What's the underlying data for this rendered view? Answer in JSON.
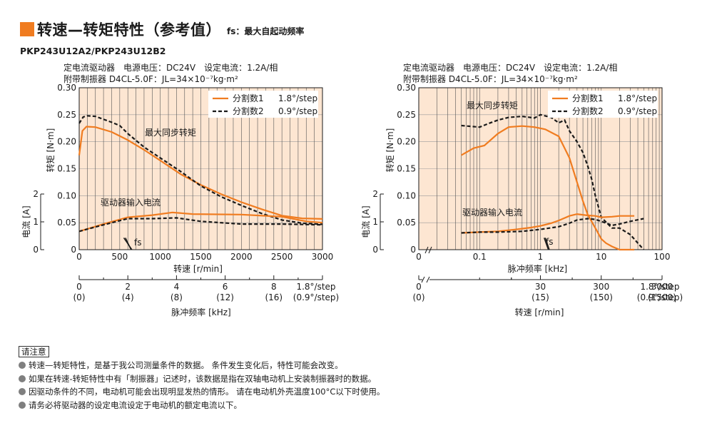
{
  "header": {
    "title": "转速—转矩特性（参考值）",
    "subtitle": "fs：最大自起动频率",
    "model": "PKP243U12A2/PKP243U12B2"
  },
  "legend": [
    {
      "label": "分割数1",
      "step": "1.8°/step",
      "color": "#f07c20",
      "dash": "solid"
    },
    {
      "label": "分割数2",
      "step": "0.9°/step",
      "color": "#1a1a1a",
      "dash": "dashed"
    }
  ],
  "chart_data": [
    {
      "type": "line",
      "conditions": [
        "定电流驱动器　电源电压：DC24V　设定电流：1.2A/相",
        "附带制振器 D4CL-5.0F：JL=34×10⁻⁷kg·m²"
      ],
      "ylabel": "转矩 [N·m]",
      "ylabel2": "电流 [A]",
      "xlabel": "转速 [r/min]",
      "xlabel2": "脉冲频率 [kHz]",
      "xlim": [
        0,
        3000
      ],
      "ylim": [
        0,
        0.3
      ],
      "yticks": [
        "0",
        "0.05",
        "0.10",
        "0.15",
        "0.20",
        "0.25",
        "0.30"
      ],
      "xticks": [
        "0",
        "500",
        "1000",
        "1500",
        "2000",
        "2500",
        "3000"
      ],
      "y2ticks": [
        "0",
        "1",
        "2"
      ],
      "freq_axis": {
        "ticks": [
          "0",
          "2",
          "4",
          "6",
          "8"
        ],
        "ticks2": [
          "(0)",
          "(4)",
          "(8)",
          "(12)",
          "(16)"
        ],
        "end": "1.8°/step",
        "end2": "(0.9°/step)"
      },
      "annotations": {
        "torque": "最大同步转矩",
        "current": "驱动器输入电流",
        "fs": "fs"
      },
      "series": [
        {
          "name": "分割数1",
          "kind": "torque",
          "x": [
            0,
            40,
            90,
            200,
            400,
            600,
            800,
            1000,
            1250,
            1500,
            1750,
            2000,
            2250,
            2500,
            2750,
            3000
          ],
          "y": [
            0.175,
            0.22,
            0.228,
            0.227,
            0.218,
            0.203,
            0.185,
            0.165,
            0.14,
            0.12,
            0.103,
            0.088,
            0.075,
            0.063,
            0.058,
            0.057
          ]
        },
        {
          "name": "分割数2",
          "kind": "torque",
          "x": [
            0,
            50,
            100,
            200,
            400,
            500,
            600,
            800,
            1000,
            1250,
            1500,
            1750,
            2000,
            2250,
            2500,
            2750,
            3000
          ],
          "y": [
            0.234,
            0.246,
            0.248,
            0.247,
            0.236,
            0.23,
            0.215,
            0.19,
            0.17,
            0.145,
            0.118,
            0.098,
            0.082,
            0.067,
            0.055,
            0.049,
            0.047
          ]
        },
        {
          "name": "分割数1",
          "kind": "current",
          "x": [
            0,
            300,
            600,
            900,
            1150,
            1400,
            2000,
            2500,
            2800,
            3000
          ],
          "y": [
            0.68,
            0.95,
            1.2,
            1.28,
            1.38,
            1.32,
            1.3,
            1.22,
            1.05,
            1.0
          ]
        },
        {
          "name": "分割数2",
          "kind": "current",
          "x": [
            0,
            300,
            600,
            900,
            1200,
            1500,
            2000,
            2500,
            3000
          ],
          "y": [
            0.68,
            0.92,
            1.15,
            1.15,
            1.18,
            1.05,
            0.95,
            0.95,
            0.92
          ]
        },
        {
          "name": "fs",
          "kind": "fs",
          "x": [
            550,
            650
          ],
          "y": [
            0.022,
            0
          ]
        },
        {
          "name": "fs",
          "kind": "fs",
          "x": [
            570,
            640
          ],
          "y": [
            0.022,
            0
          ]
        }
      ]
    },
    {
      "type": "line",
      "conditions": [
        "定电流驱动器　电源电压：DC24V　设定电流：1.2A/相",
        "附带制振器 D4CL-5.0F：JL=34×10⁻⁷kg·m²"
      ],
      "ylabel": "转矩 [N·m]",
      "ylabel2": "电流 [A]",
      "xlabel": "脉冲频率 [kHz]",
      "xlabel2": "转速 [r/min]",
      "xscale": "log",
      "xlim": [
        0.01,
        100
      ],
      "ylim": [
        0,
        0.3
      ],
      "yticks": [
        "0",
        "0.05",
        "0.10",
        "0.15",
        "0.20",
        "0.25",
        "0.30"
      ],
      "xticks": [
        "0",
        "0.1",
        "1",
        "10",
        "100"
      ],
      "y2ticks": [
        "0",
        "1",
        "2"
      ],
      "speed_axis": {
        "ticks": [
          "0",
          "30",
          "300",
          "3000"
        ],
        "ticks2": [
          "(0)",
          "(15)",
          "(150)",
          "(1500)"
        ],
        "end": "1.8°/step",
        "end2": "(0.9°/step)"
      },
      "annotations": {
        "torque": "最大同步转矩",
        "current": "驱动器输入电流",
        "fs": "fs"
      },
      "series": [
        {
          "name": "分割数1",
          "kind": "torque",
          "x": [
            0.05,
            0.08,
            0.12,
            0.2,
            0.3,
            0.5,
            0.8,
            1.2,
            2,
            3,
            4,
            5,
            6,
            8,
            10,
            12,
            15,
            20,
            25,
            35
          ],
          "y": [
            0.175,
            0.188,
            0.193,
            0.215,
            0.227,
            0.229,
            0.227,
            0.223,
            0.21,
            0.17,
            0.125,
            0.09,
            0.065,
            0.04,
            0.02,
            0.012,
            0.006,
            0,
            0,
            0
          ]
        },
        {
          "name": "分割数2",
          "kind": "torque",
          "x": [
            0.05,
            0.1,
            0.15,
            0.2,
            0.3,
            0.5,
            0.8,
            1,
            1.5,
            2,
            2.5,
            3,
            4,
            5,
            6,
            7,
            8,
            10,
            15,
            20,
            30,
            50
          ],
          "y": [
            0.23,
            0.227,
            0.235,
            0.24,
            0.245,
            0.247,
            0.244,
            0.25,
            0.245,
            0.235,
            0.24,
            0.22,
            0.2,
            0.18,
            0.155,
            0.13,
            0.1,
            0.06,
            0.04,
            0.04,
            0.028,
            0
          ]
        },
        {
          "name": "分割数1",
          "kind": "current",
          "x": [
            0.05,
            0.1,
            0.2,
            0.4,
            0.7,
            1,
            1.5,
            2,
            3,
            4,
            6,
            8,
            10,
            15,
            20,
            35
          ],
          "y": [
            0.62,
            0.65,
            0.68,
            0.75,
            0.82,
            0.88,
            0.98,
            1.08,
            1.25,
            1.32,
            1.27,
            1.25,
            1.2,
            1.22,
            1.25,
            1.25
          ]
        },
        {
          "name": "分割数2",
          "kind": "current",
          "x": [
            0.05,
            0.1,
            0.2,
            0.5,
            1,
            2,
            3,
            4,
            6,
            8,
            10,
            15,
            20,
            30,
            50
          ],
          "y": [
            0.62,
            0.65,
            0.65,
            0.68,
            0.75,
            0.85,
            0.98,
            1.1,
            1.15,
            1.12,
            1.05,
            0.9,
            0.95,
            1.05,
            1.15
          ]
        },
        {
          "name": "fs",
          "kind": "fs",
          "x": [
            1.15,
            1.35
          ],
          "y": [
            0.022,
            0
          ]
        },
        {
          "name": "fs",
          "kind": "fs",
          "x": [
            1.2,
            1.4
          ],
          "y": [
            0.022,
            0
          ]
        }
      ]
    }
  ],
  "notes": {
    "title": "请注意",
    "items": [
      "转速—转矩特性，是基于我公司测量条件的数据。 条件发生变化后，特性可能会改变。",
      "如果在转速-转矩特性中有「制振器」记述时，该数据是指在双轴电动机上安装制振器时的数据。",
      "因驱动条件的不同，电动机可能会出现明显发热的情形。 请在电动机外壳温度100°C以下时使用。",
      "请务必将驱动器的设定电流设定于电动机的额定电流以下。"
    ]
  }
}
